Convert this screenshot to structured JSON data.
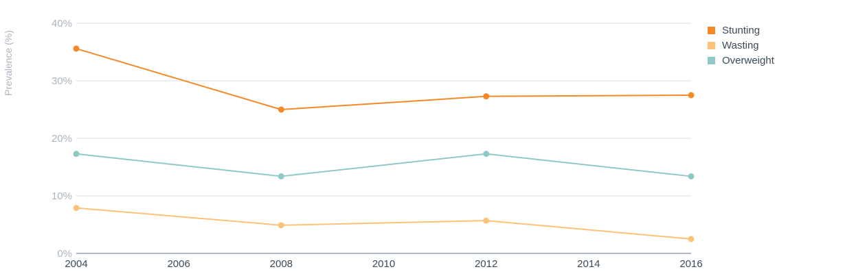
{
  "chart_data": {
    "type": "line",
    "x": [
      2004,
      2008,
      2012,
      2016
    ],
    "xticks": [
      "2004",
      "2006",
      "2008",
      "2010",
      "2012",
      "2014",
      "2016"
    ],
    "xlim": [
      2004,
      2016
    ],
    "ylabel": "Prevalence (%)",
    "yticks": [
      "0%",
      "10%",
      "20%",
      "30%",
      "40%"
    ],
    "ylim": [
      0,
      40
    ],
    "grid": true,
    "legend_position": "top-right",
    "series": [
      {
        "name": "Stunting",
        "color": "#f5892a",
        "values": [
          35.6,
          25.0,
          27.3,
          27.5
        ]
      },
      {
        "name": "Wasting",
        "color": "#fcc27a",
        "values": [
          7.9,
          4.9,
          5.7,
          2.5
        ]
      },
      {
        "name": "Overweight",
        "color": "#8ec9c7",
        "values": [
          17.3,
          13.4,
          17.3,
          13.4
        ]
      }
    ]
  }
}
